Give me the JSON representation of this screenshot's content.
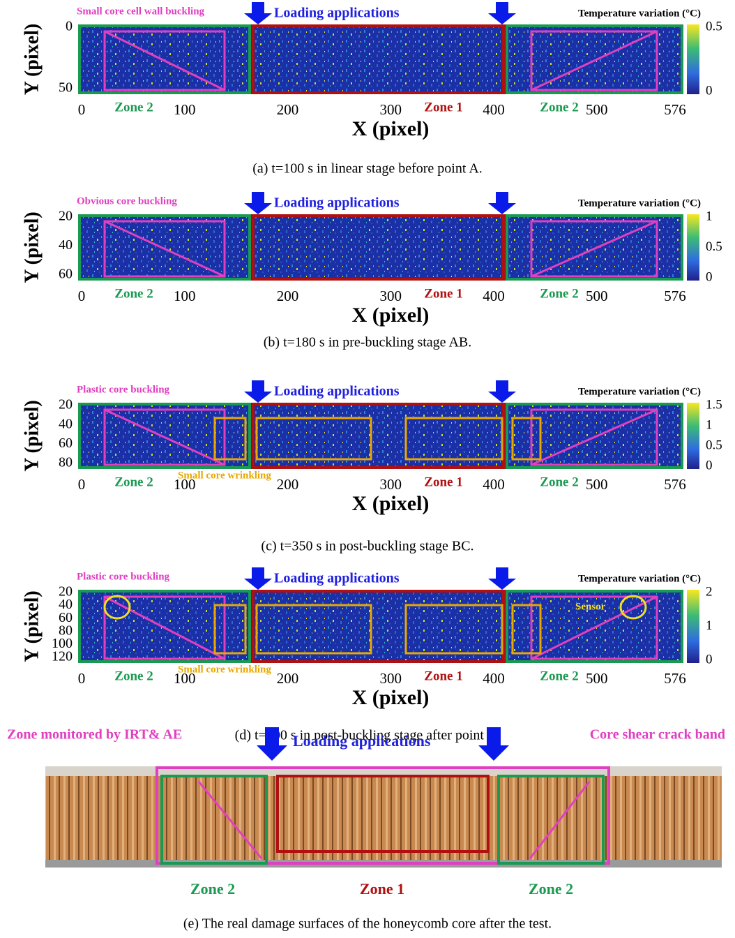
{
  "panels": [
    {
      "left_label": "Small core cell wall buckling",
      "loading": "Loading applications",
      "colorbar_title": "Temperature variation (°C)",
      "zones": [
        "Zone 2",
        "Zone 1",
        "Zone 2"
      ],
      "y_label": "Y (pixel)",
      "x_label": "X (pixel)",
      "x_ticks": [
        0,
        100,
        200,
        300,
        400,
        500,
        576
      ],
      "y_ticks": [
        0,
        50
      ],
      "colorbar_ticks": [
        0.5,
        0
      ],
      "caption": "(a) t=100 s in linear stage before point A."
    },
    {
      "left_label": "Obvious core buckling",
      "loading": "Loading applications",
      "colorbar_title": "Temperature variation (°C)",
      "zones": [
        "Zone 2",
        "Zone 1",
        "Zone 2"
      ],
      "y_label": "Y (pixel)",
      "x_label": "X (pixel)",
      "x_ticks": [
        0,
        100,
        200,
        300,
        400,
        500,
        576
      ],
      "y_ticks": [
        20,
        40,
        60
      ],
      "colorbar_ticks": [
        1,
        0.5,
        0
      ],
      "caption": "(b) t=180 s in pre-buckling stage AB."
    },
    {
      "left_label": "Plastic core buckling",
      "loading": "Loading applications",
      "colorbar_title": "Temperature variation (°C)",
      "zones": [
        "Zone 2",
        "Zone 1",
        "Zone 2"
      ],
      "y_label": "Y (pixel)",
      "x_label": "X (pixel)",
      "x_ticks": [
        0,
        100,
        200,
        300,
        400,
        500,
        576
      ],
      "y_ticks": [
        20,
        40,
        60,
        80
      ],
      "colorbar_ticks": [
        1.5,
        1,
        0.5,
        0
      ],
      "wrinkling": "Small core wrinkling",
      "caption": "(c) t=350 s in post-buckling stage BC."
    },
    {
      "left_label": "Plastic core buckling",
      "loading": "Loading applications",
      "colorbar_title": "Temperature variation (°C)",
      "zones": [
        "Zone 2",
        "Zone 1",
        "Zone 2"
      ],
      "y_label": "Y (pixel)",
      "x_label": "X (pixel)",
      "x_ticks": [
        0,
        100,
        200,
        300,
        400,
        500,
        576
      ],
      "y_ticks": [
        20,
        40,
        60,
        80,
        100,
        120
      ],
      "colorbar_ticks": [
        2,
        1,
        0
      ],
      "wrinkling": "Small core wrinkling",
      "sensor": "Sensor",
      "caption": "(d) t=600 s in post-buckling stage after point C."
    }
  ],
  "photo": {
    "left_label": "Zone monitored by IRT& AE",
    "loading": "Loading applications",
    "right_label": "Core shear crack band",
    "zones": [
      "Zone 2",
      "Zone 1",
      "Zone 2"
    ],
    "caption": "(e) The real damage surfaces of the honeycomb core after the test."
  }
}
